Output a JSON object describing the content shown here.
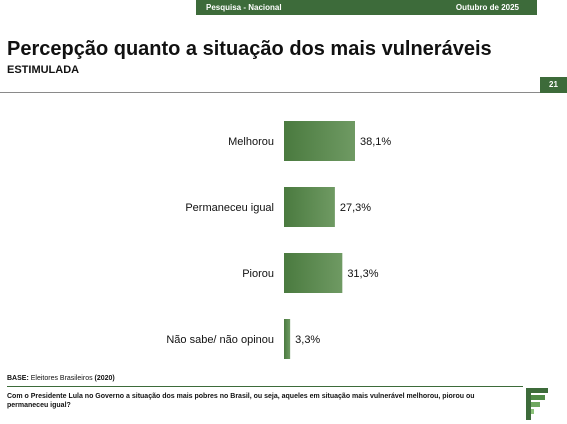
{
  "header": {
    "left": "Pesquisa - Nacional",
    "right": "Outubro de 2025"
  },
  "title": "Percepção quanto a situação dos mais vulneráveis",
  "subtitle": "ESTIMULADA",
  "page_number": "21",
  "base": {
    "label": "BASE:",
    "text": " Eleitores Brasileiros ",
    "count": "(2020)"
  },
  "question": "Com o Presidente Lula no Governo a situação dos mais pobres no Brasil, ou seja, aqueles em situação mais vulnerável melhorou, piorou ou permaneceu igual?",
  "colors": {
    "bar": "#4a7a3f",
    "bar_light": "#7fa874",
    "header": "#3d6b3a"
  },
  "chart_data": {
    "type": "bar",
    "orientation": "horizontal",
    "categories": [
      "Melhorou",
      "Permaneceu igual",
      "Piorou",
      "Não sabe/ não opinou"
    ],
    "values": [
      38.1,
      27.3,
      31.3,
      3.3
    ],
    "value_labels": [
      "38,1%",
      "27,3%",
      "31,3%",
      "3,3%"
    ],
    "xlim": [
      0,
      100
    ],
    "grid": false,
    "legend": "none"
  }
}
